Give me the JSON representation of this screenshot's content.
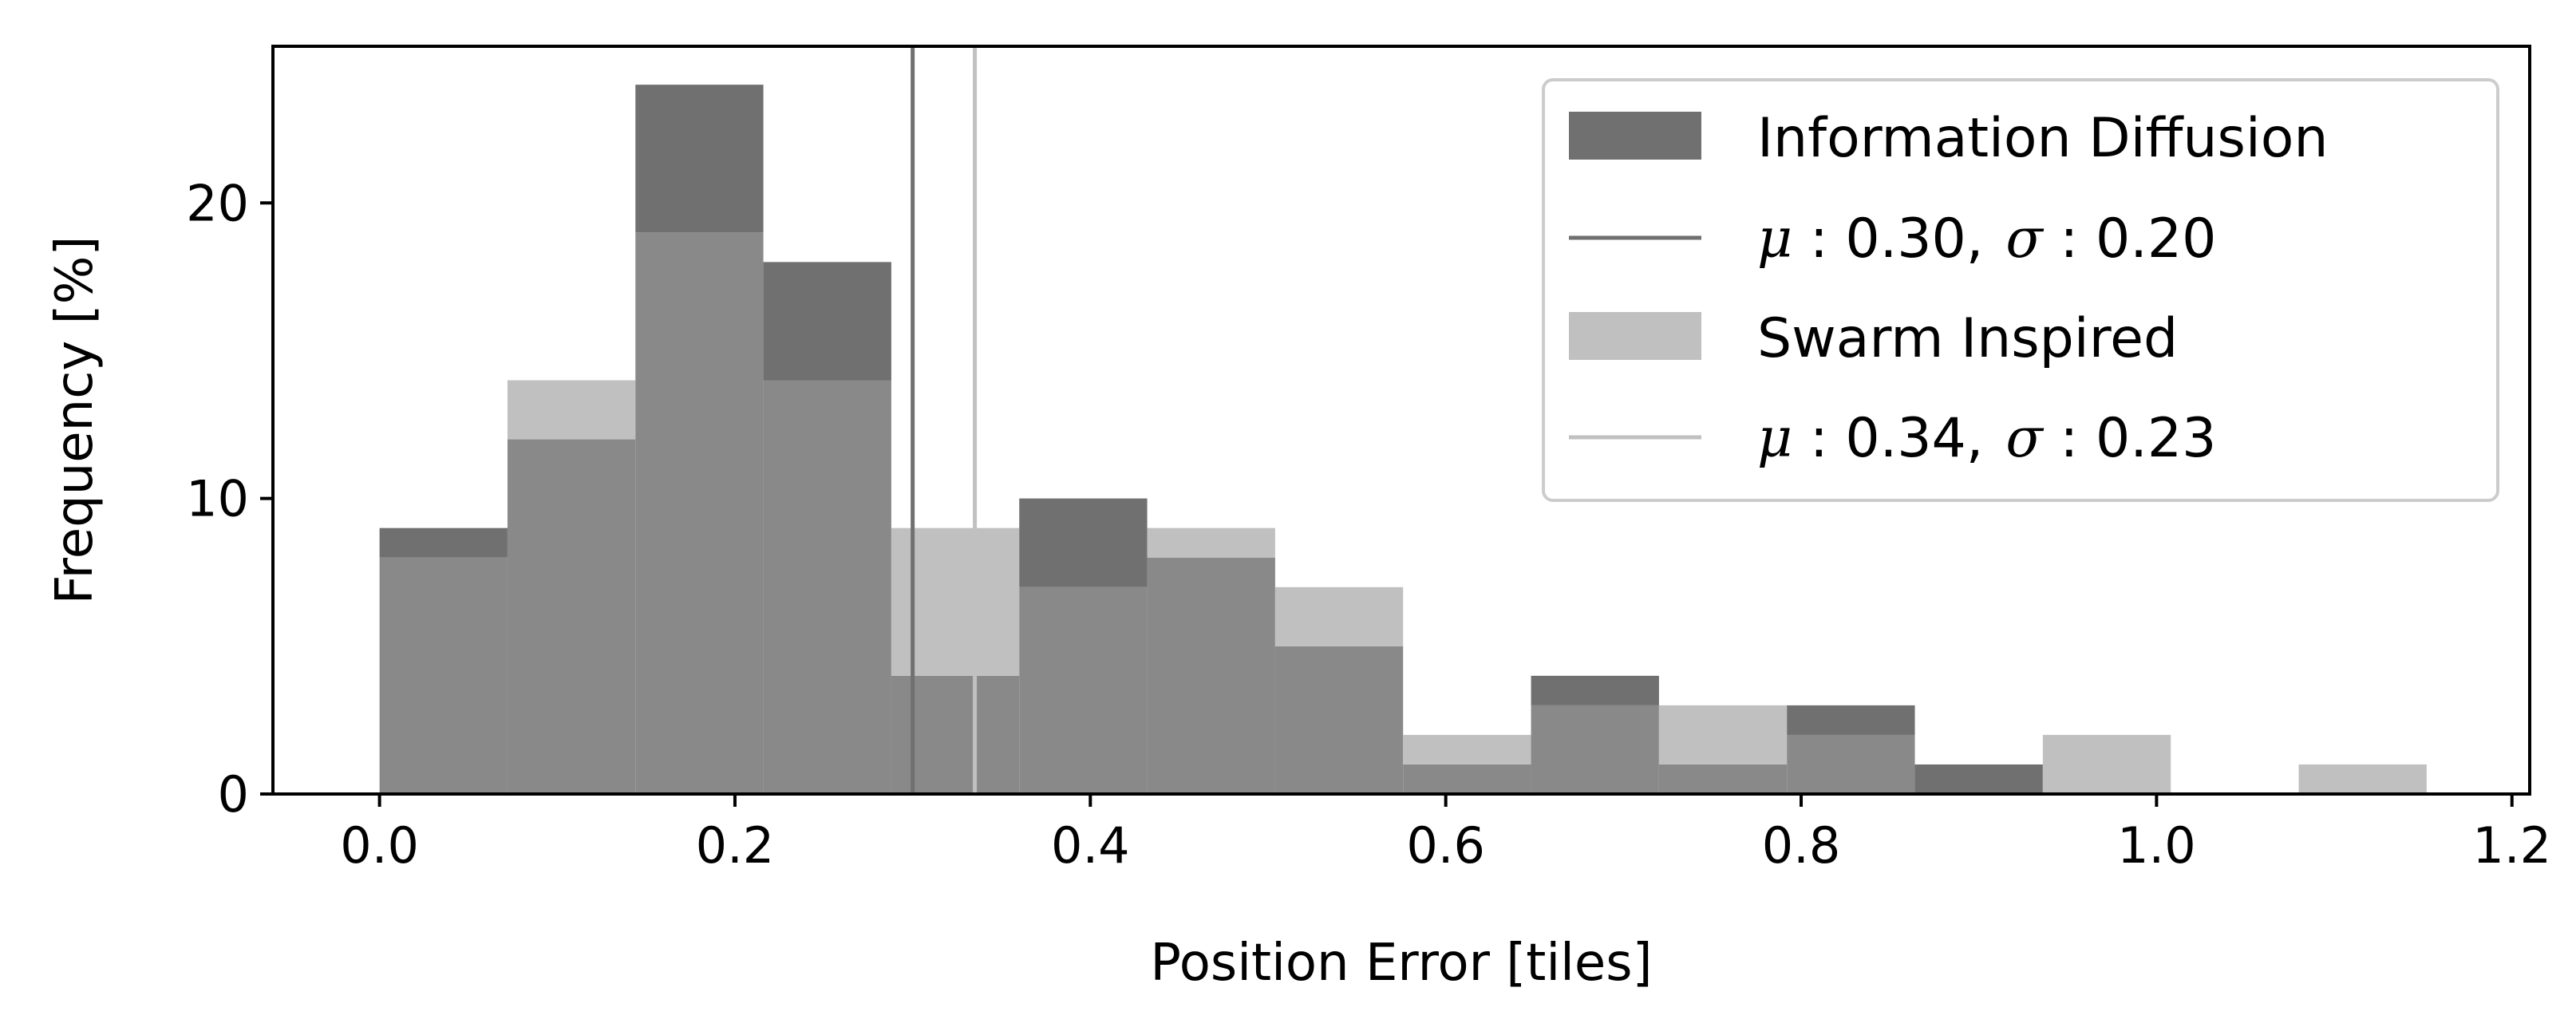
{
  "chart_data": {
    "type": "bar",
    "xlabel": "Position Error [tiles]",
    "ylabel": "Frequency [%]",
    "xlim": [
      -0.06,
      1.21
    ],
    "ylim": [
      0,
      25.3
    ],
    "x_ticks": [
      "0.0",
      "0.2",
      "0.4",
      "0.6",
      "0.8",
      "1.0",
      "1.2"
    ],
    "y_ticks": [
      "0",
      "10",
      "20"
    ],
    "grid": false,
    "legend_position": "top-right",
    "bin_edges": [
      0.0,
      0.072,
      0.144,
      0.216,
      0.288,
      0.36,
      0.432,
      0.504,
      0.576,
      0.648,
      0.72,
      0.792,
      0.864,
      0.936,
      1.008,
      1.08,
      1.152
    ],
    "series": [
      {
        "name": "Information Diffusion",
        "values": [
          9,
          12,
          24,
          18,
          4,
          10,
          8,
          5,
          1,
          4,
          1,
          3,
          1,
          0,
          0,
          0
        ],
        "color": "#707070",
        "mean_line": {
          "x": 0.3,
          "label_mu": "μ",
          "label_mu_value": " : 0.30,",
          "label_sigma": "σ",
          "label_sigma_value": " : 0.20"
        }
      },
      {
        "name": "Swarm Inspired",
        "values": [
          8,
          14,
          19,
          14,
          9,
          7,
          9,
          7,
          2,
          3,
          3,
          2,
          0,
          2,
          0,
          1
        ],
        "color": "#c0c0c0",
        "mean_line": {
          "x": 0.335,
          "label_mu": "μ",
          "label_mu_value": " : 0.34,",
          "label_sigma": "σ",
          "label_sigma_value": " : 0.23"
        }
      }
    ],
    "overlap_color": "#898989"
  }
}
